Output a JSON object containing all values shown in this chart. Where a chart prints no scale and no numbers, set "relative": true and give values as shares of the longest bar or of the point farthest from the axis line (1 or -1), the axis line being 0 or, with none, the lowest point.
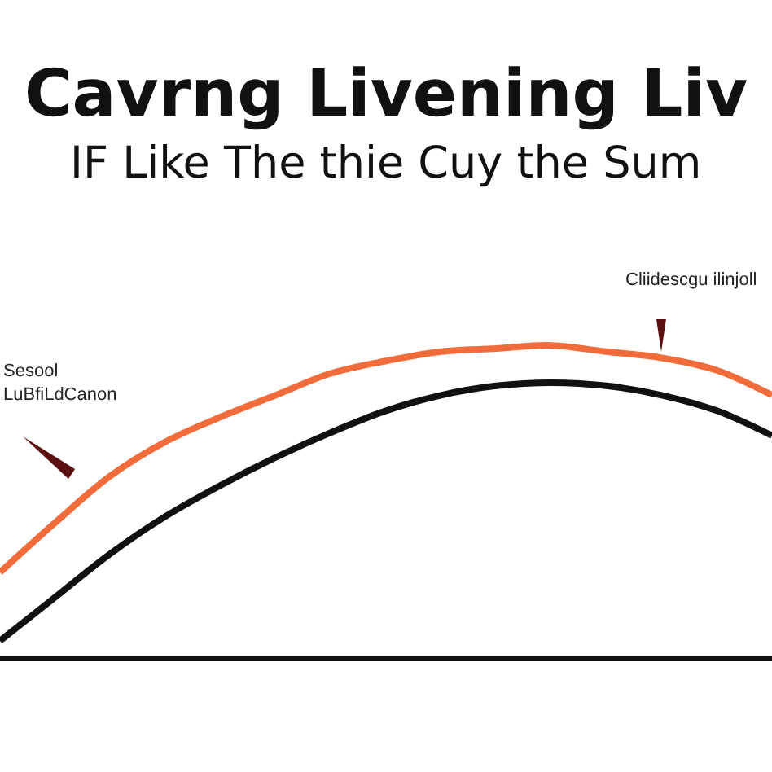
{
  "chart_data": {
    "type": "line",
    "title": "Cavrng Livening Liv",
    "subtitle": "IF Like The thie Cuy the Sum",
    "relative": true,
    "categories": [
      null,
      null,
      null,
      null,
      null,
      null,
      null,
      null,
      null,
      null,
      null,
      null,
      null,
      null,
      null
    ],
    "series": [
      {
        "color": "#f26b3a",
        "values": [
          0.27,
          0.43,
          0.58,
          0.69,
          0.77,
          0.84,
          0.91,
          0.95,
          0.98,
          0.99,
          1,
          0.98,
          0.96,
          0.92,
          0.84
        ]
      },
      {
        "color": "#111111",
        "values": [
          0.05,
          0.19,
          0.33,
          0.45,
          0.55,
          0.64,
          0.72,
          0.79,
          0.84,
          0.87,
          0.88,
          0.87,
          0.84,
          0.79,
          0.71
        ]
      }
    ],
    "annotations": [
      "Sesool\nLuBfiLdCanon",
      "Cliidescgu ilinjoll"
    ],
    "marker": "none",
    "line_style": "solid"
  }
}
